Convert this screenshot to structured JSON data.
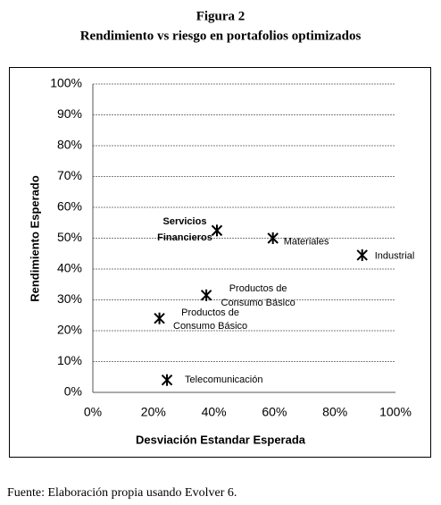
{
  "chart_data": {
    "type": "scatter",
    "title": "Figura 2",
    "subtitle": "Rendimiento vs riesgo en portafolios optimizados",
    "xlabel": "Desviación Estandar Esperada",
    "ylabel": "Rendimiento Esperado",
    "x": [
      41,
      59.5,
      89,
      37.5,
      22,
      24.5
    ],
    "y": [
      52.5,
      50,
      44.5,
      31.5,
      24,
      4
    ],
    "point_labels": [
      [
        "Servicios",
        "Financieros"
      ],
      [
        "Materiales"
      ],
      [
        "Industrial"
      ],
      [
        "Productos de",
        "Consumo Básico"
      ],
      [
        "Productos de",
        "Consumo Básico"
      ],
      [
        "Telecomunicación"
      ]
    ],
    "color": "#000000",
    "xlim": [
      0,
      100
    ],
    "ylim": [
      0,
      100
    ],
    "xticks": [
      {
        "value": 0,
        "label": "0%"
      },
      {
        "value": 20,
        "label": "20%"
      },
      {
        "value": 40,
        "label": "40%"
      },
      {
        "value": 60,
        "label": "60%"
      },
      {
        "value": 80,
        "label": "80%"
      },
      {
        "value": 100,
        "label": "100%"
      }
    ],
    "yticks": [
      {
        "value": 0,
        "label": "0%"
      },
      {
        "value": 10,
        "label": "10%"
      },
      {
        "value": 20,
        "label": "20%"
      },
      {
        "value": 30,
        "label": "30%"
      },
      {
        "value": 40,
        "label": "40%"
      },
      {
        "value": 50,
        "label": "50%"
      },
      {
        "value": 60,
        "label": "60%"
      },
      {
        "value": 70,
        "label": "70%"
      },
      {
        "value": 80,
        "label": "80%"
      },
      {
        "value": 90,
        "label": "90%"
      },
      {
        "value": 100,
        "label": "100%"
      }
    ],
    "grid": true
  },
  "footer": "Fuente: Elaboración propia usando Evolver 6."
}
